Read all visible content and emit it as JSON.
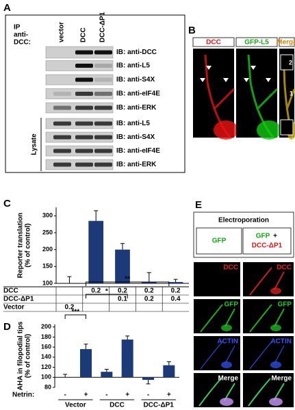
{
  "panels": {
    "A": {
      "letter": "A",
      "ip_label": [
        "IP",
        "anti-",
        "DCC:"
      ],
      "columns": [
        "vector",
        "DCC",
        "DCC-ΔP1"
      ],
      "ib_rows": [
        "IB: anti-DCC",
        "IB: anti-L5",
        "IB: anti-S4X",
        "IB: anti-eIF4E",
        "IB: anti-ERK"
      ],
      "lysate_label": "Lysate",
      "lysate_rows": [
        "IB: anti-L5",
        "IB: anti-S4X",
        "IB: anti-eIF4E",
        "IB: anti-ERK"
      ]
    },
    "B": {
      "letter": "B",
      "channels": [
        "DCC",
        "GFP-L5",
        "Merge"
      ],
      "inset_labels": [
        "2",
        "1"
      ]
    },
    "E": {
      "letter": "E",
      "title": "Electroporation",
      "conditions": [
        [
          "GFP"
        ],
        [
          "GFP",
          "+",
          "DCC-ΔP1"
        ]
      ],
      "rows": [
        "DCC",
        "GFP",
        "ACTIN",
        "Merge"
      ]
    }
  },
  "chart_data": [
    {
      "type": "bar",
      "panel_label": "C",
      "ylabel": [
        "Reporter translation",
        "(% of control)"
      ],
      "values": [
        100,
        285,
        200,
        105,
        104
      ],
      "errors": [
        20,
        30,
        18,
        27,
        8
      ],
      "color": "#1c3a78",
      "ylim": [
        100,
        325
      ],
      "yticks": [
        100,
        150,
        200,
        250,
        300
      ],
      "table": [
        {
          "label": "DCC",
          "cells": [
            null,
            0.2,
            0.2,
            0.2,
            0.2
          ]
        },
        {
          "label": "DCC-ΔP1",
          "cells": [
            null,
            null,
            0.1,
            0.2,
            0.4
          ]
        },
        {
          "label": "Vector",
          "cells": [
            0.2,
            null,
            null,
            null,
            null
          ]
        }
      ]
    },
    {
      "type": "bar",
      "panel_label": "D",
      "ylabel": [
        "AHA in filopodial tips",
        "(% of control)"
      ],
      "x_title": "Netrin:",
      "categories": [
        "-",
        "+",
        "-",
        "+",
        "-",
        "+"
      ],
      "groups": [
        "Vector",
        "DCC",
        "DCC-ΔP1"
      ],
      "values": [
        100,
        156,
        111,
        175,
        95,
        124
      ],
      "errors": [
        6,
        10,
        5,
        7,
        8,
        7
      ],
      "color": "#1c3a78",
      "baseline": 100,
      "ylim": [
        80,
        205
      ],
      "yticks": [
        80,
        100,
        120,
        140,
        160,
        180,
        200
      ],
      "significance": [
        "***",
        "*",
        "**"
      ]
    }
  ]
}
